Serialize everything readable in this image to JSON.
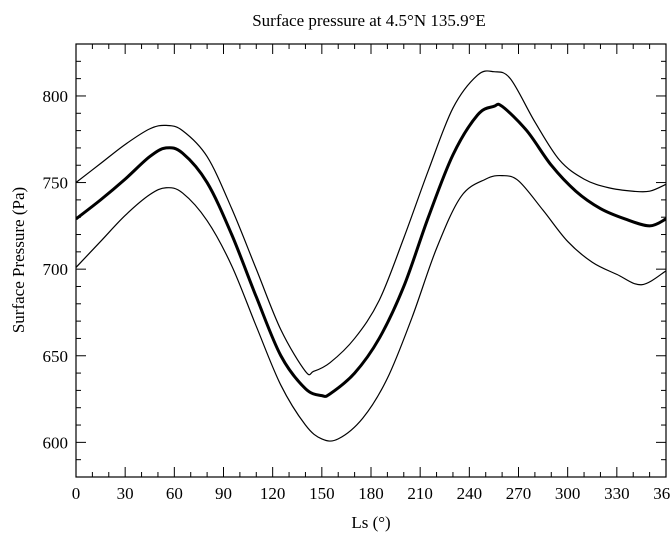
{
  "chart_data": {
    "type": "line",
    "title": "Surface pressure at 4.5°N 135.9°E",
    "xlabel": "Ls (°)",
    "ylabel": "Surface Pressure (Pa)",
    "xlim": [
      0,
      360
    ],
    "ylim": [
      580,
      830
    ],
    "x_ticks": [
      "0",
      "30",
      "60",
      "90",
      "120",
      "150",
      "180",
      "210",
      "240",
      "270",
      "300",
      "330",
      "360"
    ],
    "y_ticks": [
      "600",
      "650",
      "700",
      "750",
      "800"
    ],
    "grid": false,
    "legend": "none",
    "series": [
      {
        "role": "upper envelope",
        "line": "thin",
        "x": [
          0,
          15,
          30,
          45,
          55,
          65,
          80,
          95,
          110,
          125,
          140,
          145,
          155,
          170,
          185,
          200,
          215,
          230,
          245,
          255,
          265,
          280,
          295,
          310,
          325,
          340,
          350,
          360
        ],
        "y": [
          750,
          761,
          772,
          781,
          783,
          780,
          765,
          735,
          700,
          665,
          641,
          641,
          646,
          660,
          682,
          718,
          757,
          793,
          812,
          814,
          810,
          785,
          763,
          752,
          747,
          745,
          745,
          749
        ]
      },
      {
        "role": "mean",
        "line": "thick",
        "x": [
          0,
          15,
          30,
          45,
          55,
          65,
          80,
          95,
          110,
          125,
          140,
          150,
          155,
          170,
          185,
          200,
          215,
          230,
          245,
          255,
          260,
          275,
          290,
          305,
          320,
          335,
          350,
          360
        ],
        "y": [
          729,
          740,
          752,
          765,
          770,
          767,
          750,
          720,
          684,
          650,
          631,
          627,
          628,
          640,
          660,
          690,
          730,
          766,
          789,
          794,
          794,
          780,
          760,
          745,
          735,
          729,
          725,
          729
        ]
      },
      {
        "role": "lower envelope",
        "line": "thin",
        "x": [
          0,
          15,
          30,
          45,
          55,
          65,
          80,
          95,
          110,
          125,
          140,
          150,
          160,
          175,
          190,
          205,
          220,
          235,
          250,
          260,
          270,
          285,
          300,
          315,
          330,
          345,
          360
        ],
        "y": [
          701,
          716,
          731,
          743,
          747,
          744,
          728,
          702,
          667,
          633,
          610,
          602,
          602,
          614,
          637,
          672,
          712,
          742,
          752,
          754,
          751,
          734,
          716,
          704,
          697,
          691,
          699
        ]
      }
    ]
  }
}
